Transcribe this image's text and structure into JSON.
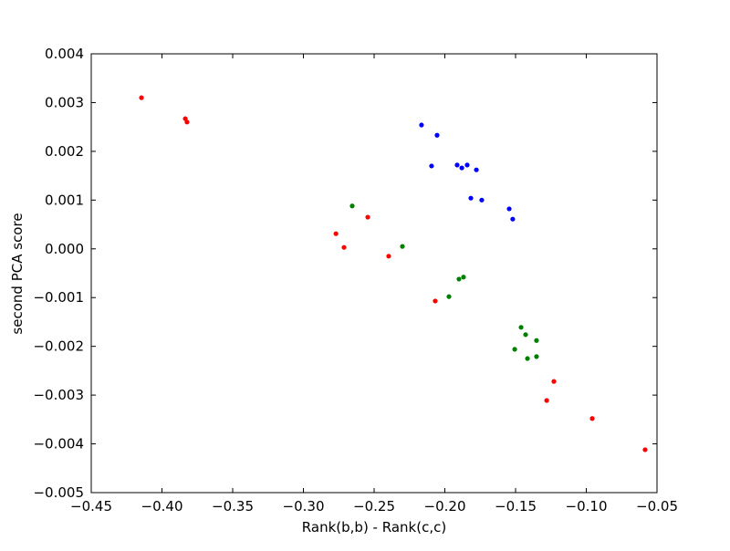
{
  "chart_data": {
    "type": "scatter",
    "xlabel": "Rank(b,b) - Rank(c,c)",
    "ylabel": "second PCA score",
    "xlim": [
      -0.45,
      -0.05
    ],
    "ylim": [
      -0.005,
      0.004
    ],
    "xticks": [
      {
        "value": -0.45,
        "label": "−0.45"
      },
      {
        "value": -0.4,
        "label": "−0.40"
      },
      {
        "value": -0.35,
        "label": "−0.35"
      },
      {
        "value": -0.3,
        "label": "−0.30"
      },
      {
        "value": -0.25,
        "label": "−0.25"
      },
      {
        "value": -0.2,
        "label": "−0.20"
      },
      {
        "value": -0.15,
        "label": "−0.15"
      },
      {
        "value": -0.1,
        "label": "−0.10"
      },
      {
        "value": -0.05,
        "label": "−0.05"
      }
    ],
    "yticks": [
      {
        "value": -0.005,
        "label": "−0.005"
      },
      {
        "value": -0.004,
        "label": "−0.004"
      },
      {
        "value": -0.003,
        "label": "−0.003"
      },
      {
        "value": -0.002,
        "label": "−0.002"
      },
      {
        "value": -0.001,
        "label": "−0.001"
      },
      {
        "value": 0,
        "label": "0.000"
      },
      0.001,
      0.002,
      0.003,
      0.004
    ],
    "series": [
      {
        "color": "#ff0000",
        "x": [
          -0.4145,
          -0.3835,
          -0.3823,
          -0.277,
          -0.2713,
          -0.2545,
          -0.2397,
          -0.2068,
          -0.1229,
          -0.128,
          -0.0958,
          -0.0584
        ],
        "y": [
          0.0031,
          0.00267,
          0.0026,
          0.00031,
          3e-05,
          0.00065,
          -0.00015,
          -0.00107,
          -0.00272,
          -0.00311,
          -0.00348,
          -0.00412
        ]
      },
      {
        "color": "#0000ff",
        "x": [
          -0.2165,
          -0.2055,
          -0.2094,
          -0.1913,
          -0.188,
          -0.1842,
          -0.1777,
          -0.1816,
          -0.1739,
          -0.1545,
          -0.152
        ],
        "y": [
          0.00254,
          0.00233,
          0.0017,
          0.00172,
          0.00166,
          0.00172,
          0.00162,
          0.00104,
          0.001,
          0.00082,
          0.00061
        ]
      },
      {
        "color": "#008000",
        "x": [
          -0.2655,
          -0.23,
          -0.19,
          -0.1868,
          -0.1971,
          -0.1461,
          -0.1429,
          -0.1352,
          -0.1506,
          -0.1416,
          -0.1352
        ],
        "y": [
          0.00088,
          5e-05,
          -0.00062,
          -0.00058,
          -0.00098,
          -0.00161,
          -0.00176,
          -0.00188,
          -0.00206,
          -0.00225,
          -0.00221
        ]
      }
    ]
  }
}
